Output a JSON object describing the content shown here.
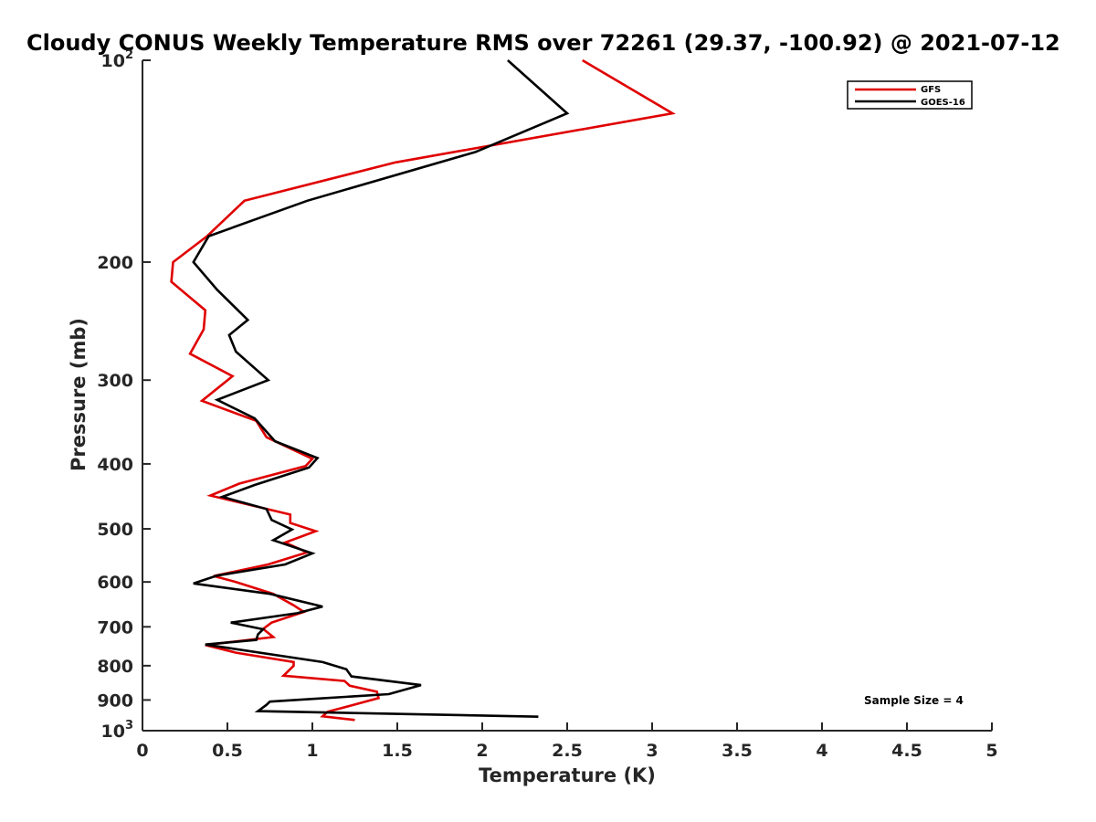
{
  "chart_data": {
    "type": "line",
    "title": "Cloudy CONUS Weekly Temperature RMS over 72261 (29.37, -100.92) @ 2021-07-12",
    "xlabel": "Temperature (K)",
    "ylabel": "Pressure (mb)",
    "xlim": [
      0,
      5
    ],
    "ylim": [
      100,
      1000
    ],
    "yscale": "log",
    "y_reversed": true,
    "grid": false,
    "legend_position": "top-right",
    "x_ticks": [
      "0",
      "0.5",
      "1",
      "1.5",
      "2",
      "2.5",
      "3",
      "3.5",
      "4",
      "4.5",
      "5"
    ],
    "x_tick_values": [
      0,
      0.5,
      1,
      1.5,
      2,
      2.5,
      3,
      3.5,
      4,
      4.5,
      5
    ],
    "y_ticks": [
      {
        "value": 100,
        "base": "10",
        "exp": "2"
      },
      {
        "value": 200,
        "label": "200"
      },
      {
        "value": 300,
        "label": "300"
      },
      {
        "value": 400,
        "label": "400"
      },
      {
        "value": 500,
        "label": "500"
      },
      {
        "value": 600,
        "label": "600"
      },
      {
        "value": 700,
        "label": "700"
      },
      {
        "value": 800,
        "label": "800"
      },
      {
        "value": 900,
        "label": "900"
      },
      {
        "value": 1000,
        "base": "10",
        "exp": "3"
      }
    ],
    "series": [
      {
        "name": "GFS",
        "color": "#e00000",
        "points": [
          [
            2.59,
            100
          ],
          [
            3.12,
            120
          ],
          [
            1.49,
            142
          ],
          [
            0.6,
            162
          ],
          [
            0.38,
            183
          ],
          [
            0.18,
            200
          ],
          [
            0.17,
            214
          ],
          [
            0.37,
            236
          ],
          [
            0.36,
            252
          ],
          [
            0.28,
            274
          ],
          [
            0.53,
            296
          ],
          [
            0.35,
            322
          ],
          [
            0.67,
            345
          ],
          [
            0.73,
            365
          ],
          [
            1.0,
            393
          ],
          [
            0.96,
            403
          ],
          [
            0.57,
            428
          ],
          [
            0.4,
            446
          ],
          [
            0.87,
            476
          ],
          [
            0.87,
            490
          ],
          [
            1.02,
            504
          ],
          [
            0.84,
            524
          ],
          [
            0.97,
            542
          ],
          [
            0.74,
            565
          ],
          [
            0.42,
            588
          ],
          [
            0.55,
            600
          ],
          [
            0.77,
            625
          ],
          [
            0.89,
            650
          ],
          [
            0.95,
            665
          ],
          [
            0.76,
            690
          ],
          [
            0.71,
            705
          ],
          [
            0.77,
            725
          ],
          [
            0.37,
            745
          ],
          [
            0.55,
            765
          ],
          [
            0.89,
            790
          ],
          [
            0.89,
            800
          ],
          [
            0.83,
            828
          ],
          [
            1.19,
            843
          ],
          [
            1.22,
            857
          ],
          [
            1.38,
            875
          ],
          [
            1.39,
            894
          ],
          [
            1.23,
            917
          ],
          [
            1.09,
            937
          ],
          [
            1.06,
            952
          ],
          [
            1.25,
            964
          ]
        ]
      },
      {
        "name": "GOES-16",
        "color": "#000000",
        "points": [
          [
            2.15,
            100
          ],
          [
            2.5,
            120
          ],
          [
            1.96,
            137
          ],
          [
            0.97,
            162
          ],
          [
            0.39,
            183
          ],
          [
            0.3,
            200
          ],
          [
            0.44,
            220
          ],
          [
            0.62,
            244
          ],
          [
            0.51,
            257
          ],
          [
            0.55,
            272
          ],
          [
            0.74,
            300
          ],
          [
            0.44,
            321
          ],
          [
            0.66,
            342
          ],
          [
            0.78,
            370
          ],
          [
            1.03,
            392
          ],
          [
            0.98,
            405
          ],
          [
            0.66,
            430
          ],
          [
            0.47,
            448
          ],
          [
            0.73,
            467
          ],
          [
            0.76,
            485
          ],
          [
            0.88,
            501
          ],
          [
            0.77,
            520
          ],
          [
            1.0,
            544
          ],
          [
            0.84,
            565
          ],
          [
            0.44,
            587
          ],
          [
            0.3,
            603
          ],
          [
            0.75,
            625
          ],
          [
            1.06,
            653
          ],
          [
            0.91,
            668
          ],
          [
            0.52,
            690
          ],
          [
            0.71,
            706
          ],
          [
            0.68,
            718
          ],
          [
            0.67,
            732
          ],
          [
            0.37,
            744
          ],
          [
            1.06,
            790
          ],
          [
            1.2,
            810
          ],
          [
            1.23,
            830
          ],
          [
            1.64,
            855
          ],
          [
            1.45,
            882
          ],
          [
            0.75,
            905
          ],
          [
            0.73,
            915
          ],
          [
            0.68,
            935
          ],
          [
            2.33,
            953
          ]
        ]
      }
    ],
    "annotation": "Sample Size = 4"
  }
}
